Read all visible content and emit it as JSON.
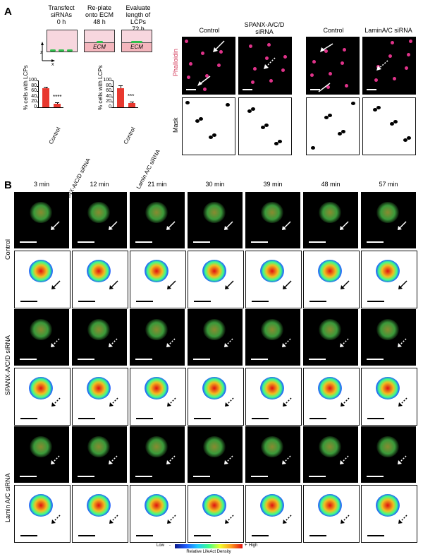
{
  "panel_a": {
    "letter": "A",
    "timeline": [
      {
        "label": "Transfect siRNAs",
        "time": "0 h"
      },
      {
        "label": "Re-plate onto ECM",
        "time": "48 h"
      },
      {
        "label": "Evaluate length of LCPs",
        "time": "72 h"
      }
    ],
    "ecm_label": "ECM",
    "axis_z": "z",
    "axis_x": "x",
    "charts": [
      {
        "chart_data": {
          "type": "bar",
          "ylabel": "% cells with LCPs",
          "categories": [
            "Control",
            "SPANX-A/C/D siRNA"
          ],
          "values": [
            70,
            14
          ],
          "errors": [
            7,
            5
          ],
          "ylim": [
            0,
            100
          ],
          "yticks": [
            "0",
            "20",
            "40",
            "60",
            "80",
            "100"
          ],
          "significance": "****"
        }
      },
      {
        "chart_data": {
          "type": "bar",
          "ylabel": "% cells with LCPs",
          "categories": [
            "Control",
            "Lamin A/C siRNA"
          ],
          "values": [
            72,
            15
          ],
          "errors": [
            9,
            7
          ],
          "ylim": [
            0,
            100
          ],
          "yticks": [
            "0",
            "20",
            "40",
            "60",
            "80",
            "100"
          ],
          "significance": "***"
        }
      }
    ],
    "micro_cols_left": [
      "Control",
      "SPANX-A/C/D siRNA"
    ],
    "micro_cols_right": [
      "Control",
      "LaminA/C siRNA"
    ],
    "row_phalloidin": "Phalloidin",
    "row_mask": "Mask"
  },
  "panel_b": {
    "letter": "B",
    "times": [
      "3 min",
      "12 min",
      "21 min",
      "30 min",
      "39 min",
      "48 min",
      "57 min"
    ],
    "row_groups": [
      "Control",
      "SPANX-A/C/D siRNA",
      "Lamin A/C siRNA"
    ],
    "legend": {
      "low": "Low",
      "minus": "-",
      "plus": "+",
      "high": "High",
      "title": "Relative LifeAct Density"
    }
  }
}
